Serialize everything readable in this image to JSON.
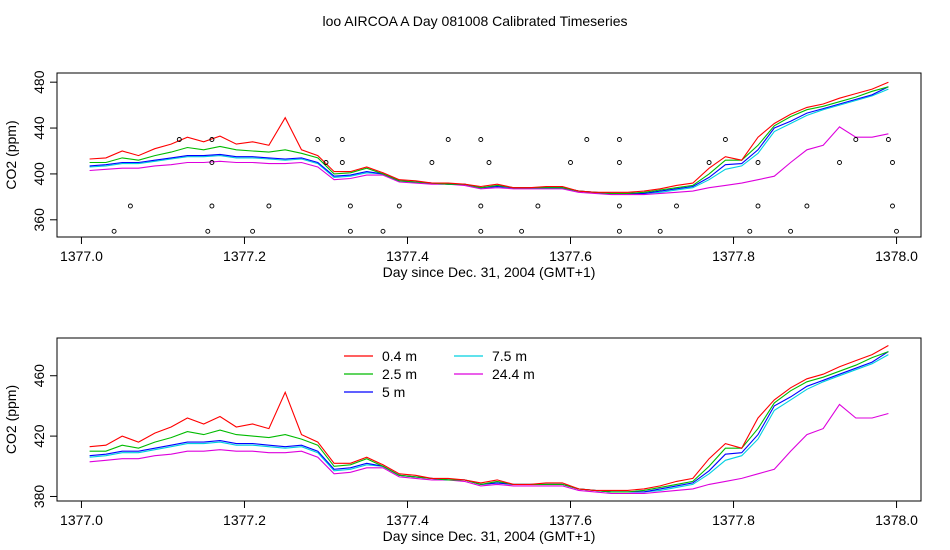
{
  "title": "loo AIRCOA A  Day 081008  Calibrated Timeseries",
  "chart_data": [
    {
      "type": "line+scatter",
      "xlabel": "Day since Dec. 31, 2004 (GMT+1)",
      "ylabel": "CO2 (ppm)",
      "xlim": [
        1376.97,
        1378.03
      ],
      "ylim": [
        345,
        488
      ],
      "xticks": [
        {
          "v": 1377.0,
          "label": "1377.0"
        },
        {
          "v": 1377.2,
          "label": "1377.2"
        },
        {
          "v": 1377.4,
          "label": "1377.4"
        },
        {
          "v": 1377.6,
          "label": "1377.6"
        },
        {
          "v": 1377.8,
          "label": "1377.8"
        },
        {
          "v": 1378.0,
          "label": "1378.0"
        }
      ],
      "yticks": [
        {
          "v": 360,
          "label": "360"
        },
        {
          "v": 400,
          "label": "400"
        },
        {
          "v": 440,
          "label": "440"
        },
        {
          "v": 480,
          "label": "480"
        }
      ],
      "grid": false,
      "legend": "none",
      "calibration_points": {
        "x": [
          1377.04,
          1377.06,
          1377.12,
          1377.155,
          1377.16,
          1377.16,
          1377.16,
          1377.21,
          1377.23,
          1377.29,
          1377.3,
          1377.32,
          1377.32,
          1377.33,
          1377.33,
          1377.37,
          1377.39,
          1377.43,
          1377.45,
          1377.49,
          1377.49,
          1377.49,
          1377.5,
          1377.54,
          1377.56,
          1377.6,
          1377.62,
          1377.66,
          1377.66,
          1377.66,
          1377.66,
          1377.71,
          1377.73,
          1377.77,
          1377.79,
          1377.82,
          1377.83,
          1377.83,
          1377.87,
          1377.89,
          1377.93,
          1377.95,
          1377.99,
          1377.995,
          1377.995,
          1378.0
        ],
        "y": [
          350,
          372,
          430,
          350,
          372,
          410,
          430,
          350,
          372,
          430,
          410,
          430,
          410,
          372,
          350,
          350,
          372,
          410,
          430,
          350,
          372,
          430,
          410,
          350,
          372,
          410,
          430,
          350,
          372,
          410,
          430,
          350,
          372,
          410,
          430,
          350,
          372,
          410,
          350,
          372,
          410,
          430,
          430,
          410,
          372,
          350
        ]
      }
    },
    {
      "type": "line",
      "xlabel": "Day since Dec. 31, 2004 (GMT+1)",
      "ylabel": "CO2 (ppm)",
      "xlim": [
        1376.97,
        1378.03
      ],
      "ylim": [
        377,
        485
      ],
      "xticks": [
        {
          "v": 1377.0,
          "label": "1377.0"
        },
        {
          "v": 1377.2,
          "label": "1377.2"
        },
        {
          "v": 1377.4,
          "label": "1377.4"
        },
        {
          "v": 1377.6,
          "label": "1377.6"
        },
        {
          "v": 1377.8,
          "label": "1377.8"
        },
        {
          "v": 1378.0,
          "label": "1378.0"
        }
      ],
      "yticks": [
        {
          "v": 380,
          "label": "380"
        },
        {
          "v": 420,
          "label": "420"
        },
        {
          "v": 460,
          "label": "460"
        }
      ],
      "grid": false,
      "legend": "top-left, two columns"
    }
  ],
  "x": [
    1377.01,
    1377.03,
    1377.05,
    1377.07,
    1377.09,
    1377.11,
    1377.13,
    1377.15,
    1377.17,
    1377.19,
    1377.21,
    1377.23,
    1377.25,
    1377.27,
    1377.29,
    1377.31,
    1377.33,
    1377.35,
    1377.37,
    1377.39,
    1377.41,
    1377.43,
    1377.45,
    1377.47,
    1377.49,
    1377.51,
    1377.53,
    1377.55,
    1377.57,
    1377.59,
    1377.61,
    1377.63,
    1377.65,
    1377.67,
    1377.69,
    1377.71,
    1377.73,
    1377.75,
    1377.77,
    1377.79,
    1377.81,
    1377.83,
    1377.85,
    1377.87,
    1377.89,
    1377.91,
    1377.93,
    1377.95,
    1377.97,
    1377.99
  ],
  "series": [
    {
      "name": "0.4 m",
      "color": "#ff0000",
      "values": [
        413,
        414,
        420,
        416,
        422,
        426,
        432,
        428,
        433,
        426,
        428,
        425,
        449,
        421,
        416,
        402,
        402,
        406,
        401,
        395,
        394,
        392,
        392,
        391,
        389,
        391,
        388,
        388,
        389,
        389,
        385,
        384,
        384,
        384,
        385,
        387,
        390,
        392,
        405,
        415,
        412,
        432,
        444,
        452,
        458,
        461,
        466,
        470,
        474,
        480
      ]
    },
    {
      "name": "2.5 m",
      "color": "#00bb00",
      "values": [
        410,
        410,
        414,
        412,
        416,
        419,
        423,
        421,
        424,
        421,
        420,
        419,
        421,
        418,
        414,
        400,
        401,
        405,
        400,
        394,
        393,
        392,
        391,
        391,
        388,
        390,
        388,
        388,
        388,
        388,
        385,
        384,
        383,
        383,
        384,
        386,
        388,
        390,
        400,
        412,
        412,
        425,
        442,
        450,
        456,
        459,
        463,
        467,
        472,
        476
      ]
    },
    {
      "name": "5 m",
      "color": "#0000ff",
      "values": [
        407,
        408,
        410,
        410,
        412,
        414,
        416,
        416,
        417,
        415,
        415,
        414,
        413,
        414,
        410,
        398,
        399,
        402,
        400,
        394,
        393,
        392,
        391,
        391,
        388,
        389,
        388,
        388,
        388,
        388,
        385,
        384,
        383,
        383,
        383,
        385,
        387,
        389,
        397,
        408,
        409,
        421,
        440,
        446,
        453,
        457,
        461,
        465,
        469,
        476
      ]
    },
    {
      "name": "7.5 m",
      "color": "#00d0e0",
      "values": [
        406,
        407,
        409,
        409,
        411,
        413,
        415,
        415,
        416,
        414,
        414,
        413,
        412,
        413,
        409,
        397,
        398,
        401,
        400,
        394,
        393,
        392,
        391,
        391,
        388,
        389,
        388,
        388,
        388,
        388,
        385,
        384,
        383,
        383,
        383,
        384,
        386,
        388,
        395,
        404,
        407,
        418,
        437,
        444,
        451,
        456,
        460,
        464,
        468,
        474
      ]
    },
    {
      "name": "24.4 m",
      "color": "#dd00dd",
      "values": [
        403,
        404,
        405,
        405,
        407,
        408,
        410,
        410,
        411,
        410,
        410,
        409,
        409,
        410,
        406,
        395,
        396,
        399,
        399,
        393,
        392,
        391,
        391,
        390,
        387,
        388,
        387,
        387,
        387,
        387,
        384,
        383,
        382,
        382,
        382,
        383,
        384,
        385,
        388,
        390,
        392,
        395,
        398,
        410,
        421,
        425,
        441,
        432,
        432,
        435
      ]
    }
  ]
}
